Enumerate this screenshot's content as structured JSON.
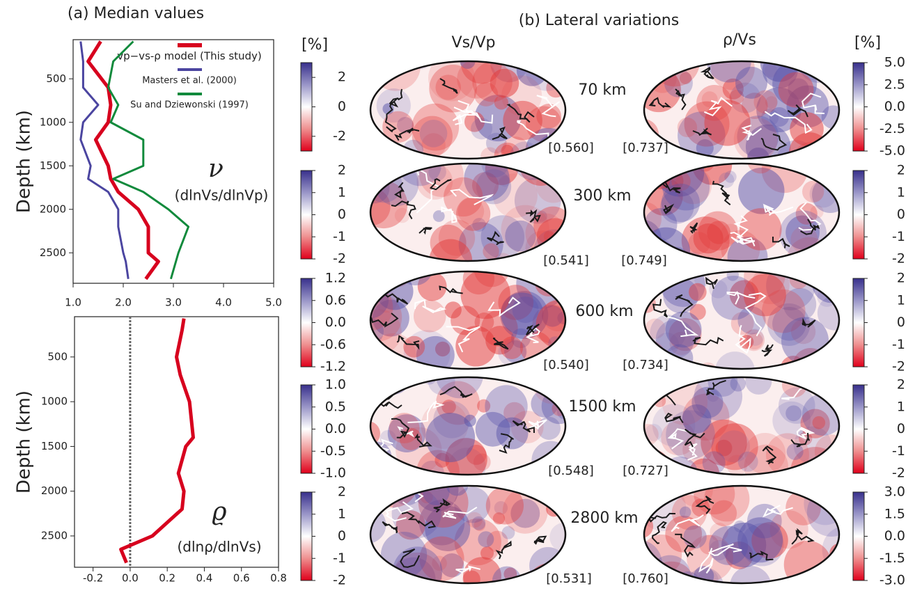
{
  "chart_data": [
    {
      "type": "line",
      "title": "(a) Median values",
      "y_label": "Depth (km)",
      "y": [
        70,
        300,
        600,
        800,
        1000,
        1200,
        1500,
        1650,
        1800,
        2000,
        2200,
        2500,
        2600,
        2800
      ],
      "series": [
        {
          "name": "vp−vs-ρ model (This study)",
          "color": "#d7001e",
          "values": [
            1.55,
            1.3,
            1.7,
            1.75,
            1.7,
            1.45,
            1.7,
            1.75,
            1.9,
            2.3,
            2.5,
            2.5,
            2.7,
            2.45
          ]
        },
        {
          "name": "Masters et al. (2000)",
          "color": "#4b45a0",
          "values": [
            1.15,
            1.2,
            1.2,
            1.5,
            1.2,
            1.15,
            1.35,
            1.3,
            1.7,
            1.9,
            1.9,
            2.0,
            2.05,
            2.1
          ]
        },
        {
          "name": "Su and Dziewonski (1997)",
          "color": "#118a3c",
          "values": [
            2.2,
            1.8,
            1.7,
            1.9,
            1.75,
            2.4,
            2.4,
            1.8,
            2.4,
            2.9,
            3.3,
            3.1,
            3.05,
            2.95
          ]
        }
      ],
      "xlim": [
        1,
        5
      ],
      "xticks": [
        {
          "value": 1,
          "label": "1.0"
        },
        {
          "value": 2,
          "label": "2.0"
        },
        {
          "value": 3,
          "label": "3.0"
        },
        {
          "value": 4,
          "label": "4.0"
        },
        {
          "value": 5,
          "label": "5.0"
        }
      ],
      "ylim": [
        50,
        2850
      ],
      "yticks": [
        500,
        1000,
        1500,
        2000,
        2500
      ],
      "y_inverted": true,
      "legend": "upper right",
      "annotations": [
        "ν",
        "(dlnVs/dlnVp)"
      ]
    },
    {
      "type": "line",
      "y_label": "Depth (km)",
      "y": [
        70,
        200,
        300,
        500,
        700,
        1000,
        1200,
        1400,
        1500,
        1800,
        2000,
        2200,
        2500,
        2650,
        2800
      ],
      "series": [
        {
          "color": "#d7001e",
          "values": [
            0.29,
            0.28,
            0.27,
            0.25,
            0.27,
            0.32,
            0.33,
            0.34,
            0.3,
            0.26,
            0.29,
            0.28,
            0.12,
            -0.05,
            -0.02
          ]
        }
      ],
      "xlim": [
        -0.3,
        0.8
      ],
      "xticks": [
        -0.2,
        {
          "value": 0,
          "label": "0.0"
        },
        0.2,
        0.4,
        0.6,
        0.8
      ],
      "ylim": [
        50,
        2850
      ],
      "yticks": [
        500,
        1000,
        1500,
        2000,
        2500
      ],
      "y_inverted": true,
      "reference_x": 0,
      "annotations": [
        "ϱ",
        "(dlnρ/dlnVs)"
      ]
    }
  ],
  "panel_b": {
    "title": "(b) Lateral variations",
    "columns": [
      "Vs/Vp",
      "ρ/Vs"
    ],
    "unit": "[%]",
    "rows": [
      {
        "depth": "70 km",
        "left": {
          "lim": [
            -3,
            3
          ],
          "ticks": [
            2,
            0,
            -2
          ],
          "correlation": "[0.560]"
        },
        "right": {
          "lim": [
            -5,
            5
          ],
          "ticks": [
            {
              "value": 5,
              "label": "5.0"
            },
            {
              "value": 2.5,
              "label": "2.5"
            },
            {
              "value": 0,
              "label": "0.0"
            },
            {
              "value": -2.5,
              "label": "-2.5"
            },
            {
              "value": -5,
              "label": "-5.0"
            }
          ],
          "correlation": "[0.737]"
        }
      },
      {
        "depth": "300 km",
        "left": {
          "lim": [
            -2,
            2
          ],
          "ticks": [
            2,
            1,
            0,
            -1,
            -2
          ],
          "correlation": "[0.541]"
        },
        "right": {
          "lim": [
            -2,
            2
          ],
          "ticks": [
            2,
            1,
            0,
            -1,
            -2
          ],
          "correlation": "[0.749]"
        }
      },
      {
        "depth": "600 km",
        "left": {
          "lim": [
            -1.2,
            1.2
          ],
          "ticks": [
            {
              "value": 1.2,
              "label": "1.2"
            },
            {
              "value": 0.6,
              "label": "0.6"
            },
            {
              "value": 0,
              "label": "0.0"
            },
            {
              "value": -0.6,
              "label": "-0.6"
            },
            {
              "value": -1.2,
              "label": "-1.2"
            }
          ],
          "correlation": "[0.540]"
        },
        "right": {
          "lim": [
            -2,
            2
          ],
          "ticks": [
            2,
            1,
            0,
            -1,
            -2
          ],
          "correlation": "[0.734]"
        }
      },
      {
        "depth": "1500 km",
        "left": {
          "lim": [
            -1,
            1
          ],
          "ticks": [
            {
              "value": 1,
              "label": "1.0"
            },
            {
              "value": 0.5,
              "label": "0.5"
            },
            {
              "value": 0,
              "label": "0.0"
            },
            {
              "value": -0.5,
              "label": "-0.5"
            },
            {
              "value": -1,
              "label": "-1.0"
            }
          ],
          "correlation": "[0.548]"
        },
        "right": {
          "lim": [
            -2,
            2
          ],
          "ticks": [
            2,
            1,
            0,
            -1,
            -2
          ],
          "correlation": "[0.727]"
        }
      },
      {
        "depth": "2800 km",
        "left": {
          "lim": [
            -2,
            2
          ],
          "ticks": [
            2,
            1,
            0,
            -1,
            -2
          ],
          "correlation": "[0.531]"
        },
        "right": {
          "lim": [
            -3,
            3
          ],
          "ticks": [
            {
              "value": 3,
              "label": "3.0"
            },
            {
              "value": 1.5,
              "label": "1.5"
            },
            {
              "value": 0,
              "label": "0.0"
            },
            {
              "value": -1.5,
              "label": "-1.5"
            },
            {
              "value": -3,
              "label": "-3.0"
            }
          ],
          "correlation": "[0.760]"
        }
      }
    ]
  }
}
